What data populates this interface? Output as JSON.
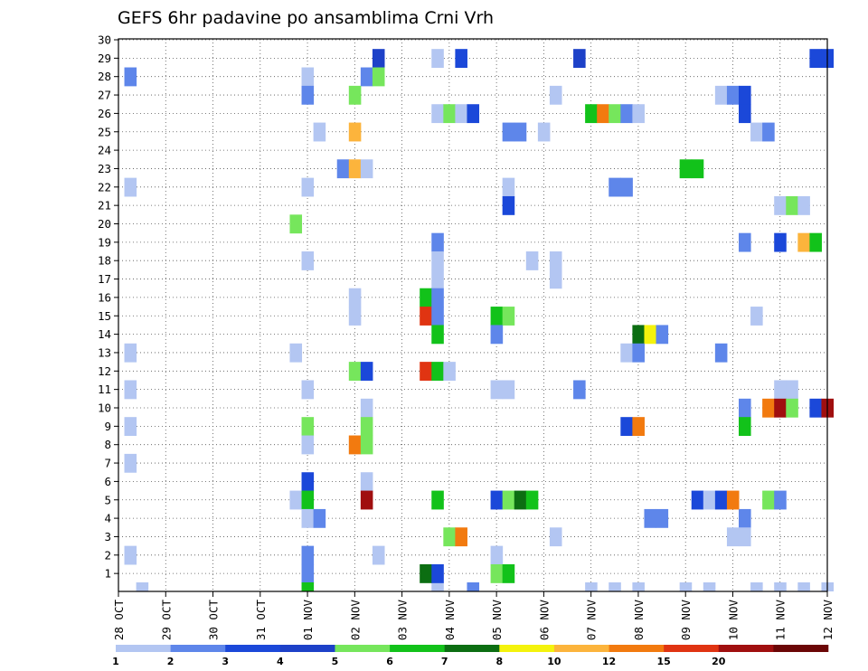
{
  "chart_data": {
    "type": "heatmap",
    "title": "GEFS 6hr padavine po ansamblima Crni Vrh",
    "xlabel": "",
    "ylabel": "",
    "x_unit": "6h steps from 28 OCT 00Z",
    "xlim": [
      0,
      59
    ],
    "ylim": [
      0,
      30
    ],
    "x_tick_labels": [
      "28 OCT",
      "29 OCT",
      "30 OCT",
      "31 OCT",
      "01 NOV",
      "02 NOV",
      "03 NOV",
      "04 NOV",
      "05 NOV",
      "06 NOV",
      "07 NOV",
      "08 NOV",
      "09 NOV",
      "10 NOV",
      "11 NOV",
      "12 NOV"
    ],
    "y_tick_labels": [
      "1",
      "2",
      "3",
      "4",
      "5",
      "6",
      "7",
      "8",
      "9",
      "10",
      "11",
      "12",
      "13",
      "14",
      "15",
      "16",
      "17",
      "18",
      "19",
      "20",
      "21",
      "22",
      "23",
      "24",
      "25",
      "26",
      "27",
      "28",
      "29",
      "30"
    ],
    "grid": true,
    "colorbar": {
      "labels": [
        "1",
        "2",
        "3",
        "4",
        "5",
        "6",
        "7",
        "8",
        "10",
        "12",
        "15",
        "20"
      ],
      "colors": [
        "#b3c6f2",
        "#5e86ea",
        "#1b48d9",
        "#1d41c8",
        "#76e65c",
        "#12c21a",
        "#0c6e12",
        "#f4f30d",
        "#fcb43c",
        "#f27a0f",
        "#e03412",
        "#a00f0f",
        "#6b0606"
      ]
    },
    "cells": [
      [
        0,
        0,
        0
      ],
      [
        0,
        0,
        0
      ],
      [
        2,
        1,
        26
      ],
      [
        1,
        1,
        28
      ],
      [
        2,
        1,
        30
      ],
      [
        2,
        1,
        39
      ],
      [
        1,
        1,
        50
      ],
      [
        1,
        2,
        54
      ],
      [
        2,
        1,
        57
      ],
      [
        1,
        4,
        16
      ],
      [
        5,
        2,
        16
      ],
      [
        2,
        6,
        26
      ],
      [
        2,
        6,
        27
      ],
      [
        4,
        7,
        38
      ],
      [
        5,
        7,
        39
      ],
      [
        4,
        5,
        40
      ],
      [
        5,
        5,
        41
      ],
      [
        2,
        1,
        16
      ],
      [
        2,
        2,
        40
      ],
      [
        2,
        1,
        27
      ],
      [
        4,
        3,
        28
      ],
      [
        4,
        5,
        29
      ],
      [
        2,
        1,
        32
      ],
      [
        4,
        4,
        52
      ],
      [
        4,
        4,
        55
      ],
      [
        3,
        1,
        1
      ],
      [
        4,
        1,
        16
      ],
      [
        3,
        1,
        27
      ],
      [
        4,
        1,
        41
      ],
      [
        5,
        9,
        42
      ],
      [
        4,
        4,
        52
      ],
      [
        4,
        1,
        59
      ],
      [
        4,
        4,
        60
      ],
      [
        5,
        1,
        30
      ],
      [
        5,
        1,
        40
      ],
      [
        6,
        1,
        54
      ],
      [
        6,
        1,
        55
      ],
      [
        6,
        1,
        32
      ],
      [
        6,
        1,
        34
      ],
      [
        6,
        1,
        35
      ],
      [
        6,
        1,
        44
      ],
      [
        6,
        3,
        39
      ],
      [
        6,
        3,
        40
      ],
      [
        7,
        1,
        1
      ],
      [
        7,
        2,
        16
      ],
      [
        7,
        12,
        21
      ],
      [
        7,
        3,
        31
      ],
      [
        7,
        6,
        40
      ],
      [
        7,
        3,
        43
      ],
      [
        7,
        6,
        44
      ],
      [
        7,
        4,
        45
      ],
      [
        7,
        5,
        46
      ],
      [
        7,
        3,
        52
      ],
      [
        7,
        4,
        53
      ],
      [
        7,
        5,
        54
      ],
      [
        7,
        5,
        55
      ],
      [
        7,
        4,
        56
      ],
      [
        7,
        4,
        57
      ],
      [
        7,
        5,
        58
      ],
      [
        7,
        5,
        59
      ],
      [
        7,
        10,
        51
      ],
      [
        7,
        10,
        52
      ],
      [
        7,
        6,
        57
      ],
      [
        7,
        4,
        58
      ],
      [
        8,
        1,
        16
      ],
      [
        8,
        3,
        27
      ],
      [
        8,
        3,
        44
      ],
      [
        8,
        4,
        46
      ],
      [
        9,
        1,
        16
      ],
      [
        9,
        3,
        27
      ],
      [
        9,
        1,
        39
      ],
      [
        9,
        4,
        47
      ],
      [
        9,
        10,
        48
      ],
      [
        9,
        5,
        61
      ],
      [
        10,
        1,
        16
      ],
      [
        10,
        4,
        21
      ],
      [
        10,
        2,
        22
      ],
      [
        10,
        1,
        22
      ],
      [
        10,
        3,
        33
      ],
      [
        10,
        2,
        34
      ],
      [
        10,
        1,
        38
      ],
      [
        10,
        2,
        41
      ],
      [
        10,
        5,
        46
      ],
      [
        10,
        6,
        47
      ],
      [
        10,
        8,
        48
      ],
      [
        10,
        3,
        51
      ],
      [
        10,
        2,
        52
      ],
      [
        10,
        1,
        57
      ],
      [
        11,
        1,
        1
      ],
      [
        11,
        4,
        17
      ],
      [
        11,
        5,
        17
      ],
      [
        11,
        10,
        20
      ],
      [
        11,
        5,
        21
      ],
      [
        11,
        2,
        24
      ],
      [
        11,
        2,
        28
      ],
      [
        11,
        10,
        31
      ],
      [
        11,
        12,
        32
      ],
      [
        11,
        9,
        35
      ],
      [
        11,
        1,
        42
      ],
      [
        11,
        1,
        43
      ],
      [
        11,
        1,
        44
      ],
      [
        11,
        1,
        45
      ],
      [
        12,
        1,
        1
      ],
      [
        12,
        2,
        16
      ],
      [
        12,
        1,
        21
      ],
      [
        12,
        1,
        33
      ],
      [
        12,
        5,
        43
      ],
      [
        12,
        3,
        45
      ],
      [
        12,
        1,
        50
      ],
      [
        13,
        4,
        16
      ],
      [
        13,
        5,
        21
      ],
      [
        13,
        1,
        26
      ],
      [
        13,
        1,
        29
      ],
      [
        13,
        4,
        34
      ],
      [
        13,
        3,
        38
      ],
      [
        13,
        1,
        40
      ],
      [
        13,
        4,
        42
      ],
      [
        13,
        1,
        43
      ],
      [
        13,
        3,
        44
      ],
      [
        13,
        2,
        45
      ],
      [
        13,
        2,
        46
      ],
      [
        13,
        3,
        47
      ],
      [
        13,
        9,
        57
      ],
      [
        13,
        8,
        58
      ],
      [
        13,
        8,
        59
      ],
      [
        14,
        4,
        5
      ],
      [
        14,
        3,
        8
      ],
      [
        14,
        1,
        46
      ],
      [
        14,
        4,
        52
      ],
      [
        14,
        6,
        56
      ],
      [
        14,
        7,
        56
      ],
      [
        14,
        8,
        57
      ],
      [
        14,
        5,
        58
      ]
    ],
    "cells_note": "",
    "cells_format": "",
    "series_note": ""
  },
  "data_cells": [
    [
      2,
      1,
      0
    ],
    [
      27,
      1,
      0
    ],
    [
      40,
      1,
      0
    ],
    [
      54,
      1,
      0
    ],
    [
      58,
      1,
      0
    ],
    [
      60,
      1,
      0
    ],
    [
      30,
      2,
      0
    ],
    [
      42,
      1,
      0
    ],
    [
      44,
      1,
      0
    ],
    [
      48,
      1,
      0
    ],
    [
      50,
      1,
      0
    ],
    [
      56,
      1,
      0
    ],
    [
      1,
      2,
      28
    ],
    [
      22,
      4,
      29
    ],
    [
      27,
      1,
      29
    ],
    [
      29,
      3,
      29
    ],
    [
      39,
      4,
      29
    ],
    [
      59,
      3,
      29
    ],
    [
      60,
      3,
      29
    ],
    [
      16,
      1,
      28
    ],
    [
      21,
      2,
      28
    ],
    [
      22,
      5,
      28
    ],
    [
      16,
      2,
      27
    ],
    [
      20,
      5,
      27
    ],
    [
      37,
      1,
      27
    ],
    [
      51,
      1,
      27
    ],
    [
      52,
      2,
      27
    ],
    [
      53,
      3,
      27
    ],
    [
      27,
      1,
      26
    ],
    [
      28,
      5,
      26
    ],
    [
      29,
      1,
      26
    ],
    [
      30,
      3,
      26
    ],
    [
      40,
      6,
      26
    ],
    [
      41,
      10,
      26
    ],
    [
      42,
      5,
      26
    ],
    [
      43,
      2,
      26
    ],
    [
      44,
      1,
      26
    ],
    [
      53,
      3,
      26
    ],
    [
      17,
      1,
      25
    ],
    [
      20,
      9,
      25
    ],
    [
      33,
      2,
      25
    ],
    [
      34,
      2,
      25
    ],
    [
      36,
      1,
      25
    ],
    [
      54,
      1,
      25
    ],
    [
      55,
      2,
      25
    ],
    [
      19,
      2,
      23
    ],
    [
      20,
      9,
      23
    ],
    [
      21,
      1,
      23
    ],
    [
      48,
      6,
      23
    ],
    [
      49,
      6,
      23
    ],
    [
      1,
      1,
      22
    ],
    [
      16,
      1,
      22
    ],
    [
      33,
      1,
      22
    ],
    [
      42,
      2,
      22
    ],
    [
      43,
      2,
      22
    ],
    [
      33,
      3,
      21
    ],
    [
      56,
      1,
      21
    ],
    [
      57,
      5,
      21
    ],
    [
      58,
      1,
      21
    ],
    [
      15,
      5,
      20
    ],
    [
      27,
      2,
      19
    ],
    [
      53,
      2,
      19
    ],
    [
      56,
      3,
      19
    ],
    [
      58,
      9,
      19
    ],
    [
      59,
      6,
      19
    ],
    [
      16,
      1,
      18
    ],
    [
      27,
      1,
      18
    ],
    [
      35,
      1,
      18
    ],
    [
      37,
      1,
      18
    ],
    [
      27,
      1,
      17
    ],
    [
      37,
      1,
      17
    ],
    [
      20,
      1,
      16
    ],
    [
      26,
      6,
      16
    ],
    [
      27,
      2,
      16
    ],
    [
      20,
      1,
      15
    ],
    [
      26,
      11,
      15
    ],
    [
      27,
      2,
      15
    ],
    [
      32,
      6,
      15
    ],
    [
      33,
      5,
      15
    ],
    [
      54,
      1,
      15
    ],
    [
      27,
      6,
      14
    ],
    [
      32,
      2,
      14
    ],
    [
      44,
      7,
      14
    ],
    [
      45,
      8,
      14
    ],
    [
      46,
      2,
      14
    ],
    [
      1,
      1,
      13
    ],
    [
      15,
      1,
      13
    ],
    [
      43,
      1,
      13
    ],
    [
      44,
      2,
      13
    ],
    [
      51,
      2,
      13
    ],
    [
      20,
      5,
      12
    ],
    [
      21,
      3,
      12
    ],
    [
      26,
      11,
      12
    ],
    [
      27,
      6,
      12
    ],
    [
      28,
      1,
      12
    ],
    [
      1,
      1,
      11
    ],
    [
      16,
      1,
      11
    ],
    [
      32,
      1,
      11
    ],
    [
      33,
      1,
      11
    ],
    [
      39,
      2,
      11
    ],
    [
      56,
      1,
      11
    ],
    [
      57,
      1,
      11
    ],
    [
      21,
      1,
      10
    ],
    [
      53,
      2,
      10
    ],
    [
      55,
      10,
      10
    ],
    [
      56,
      12,
      10
    ],
    [
      57,
      5,
      10
    ],
    [
      59,
      3,
      10
    ],
    [
      60,
      12,
      10
    ],
    [
      1,
      1,
      9
    ],
    [
      16,
      5,
      9
    ],
    [
      21,
      5,
      9
    ],
    [
      43,
      3,
      9
    ],
    [
      44,
      10,
      9
    ],
    [
      53,
      6,
      9
    ],
    [
      16,
      1,
      8
    ],
    [
      20,
      10,
      8
    ],
    [
      21,
      5,
      8
    ],
    [
      1,
      1,
      7
    ],
    [
      16,
      3,
      6
    ],
    [
      21,
      1,
      6
    ],
    [
      15,
      1,
      5
    ],
    [
      16,
      6,
      5
    ],
    [
      21,
      12,
      5
    ],
    [
      27,
      6,
      5
    ],
    [
      32,
      3,
      5
    ],
    [
      33,
      5,
      5
    ],
    [
      34,
      7,
      5
    ],
    [
      35,
      6,
      5
    ],
    [
      49,
      3,
      5
    ],
    [
      50,
      1,
      5
    ],
    [
      51,
      3,
      5
    ],
    [
      52,
      10,
      5
    ],
    [
      55,
      5,
      5
    ],
    [
      56,
      2,
      5
    ],
    [
      16,
      1,
      4
    ],
    [
      17,
      2,
      4
    ],
    [
      45,
      2,
      4
    ],
    [
      46,
      2,
      4
    ],
    [
      53,
      2,
      4
    ],
    [
      28,
      5,
      3
    ],
    [
      29,
      10,
      3
    ],
    [
      37,
      1,
      3
    ],
    [
      52,
      1,
      3
    ],
    [
      53,
      1,
      3
    ],
    [
      1,
      1,
      2
    ],
    [
      16,
      2,
      2
    ],
    [
      22,
      1,
      2
    ],
    [
      32,
      1,
      2
    ],
    [
      16,
      2,
      1
    ],
    [
      26,
      7,
      1
    ],
    [
      27,
      3,
      1
    ],
    [
      32,
      5,
      1
    ],
    [
      33,
      6,
      1
    ],
    [
      16,
      6,
      0.5
    ]
  ]
}
